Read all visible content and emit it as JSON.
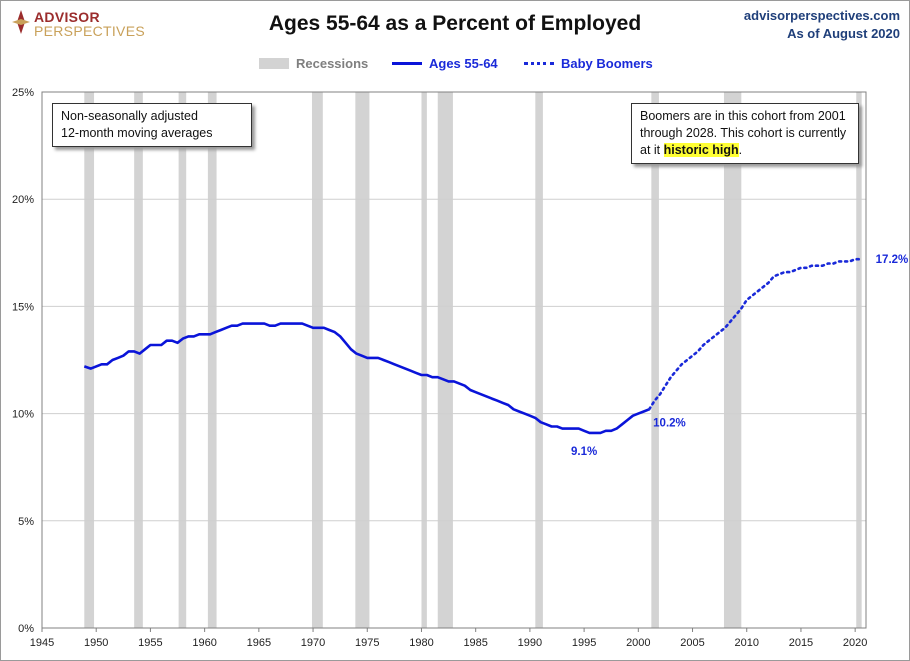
{
  "header": {
    "logo_line1": "ADVISOR",
    "logo_line2": "PERSPECTIVES",
    "site": "advisorperspectives.com",
    "as_of": "As of August 2020"
  },
  "notes": {
    "left_line1": "Non-seasonally adjusted",
    "left_line2": "12-month moving averages",
    "right_part1": "Boomers are in this cohort from 2001  through 2028.  This cohort is currently at it ",
    "right_highlight": "historic high",
    "right_end": "."
  },
  "colors": {
    "line": "#0a14d9",
    "boomers": "#1a2ad9",
    "recession": "#d3d3d3",
    "label": "#1a2ad9"
  },
  "chart_data": {
    "type": "line",
    "title": "Ages 55-64 as a Percent of Employed",
    "xlim": [
      1945,
      2021
    ],
    "ylim": [
      0,
      25
    ],
    "x_ticks": [
      1945,
      1950,
      1955,
      1960,
      1965,
      1970,
      1975,
      1980,
      1985,
      1990,
      1995,
      2000,
      2005,
      2010,
      2015,
      2020
    ],
    "y_ticks": [
      0,
      5,
      10,
      15,
      20,
      25
    ],
    "y_tick_labels": [
      "0%",
      "5%",
      "10%",
      "15%",
      "20%",
      "25%"
    ],
    "grid": "horizontal",
    "legend_position": "top-center",
    "recessions_label": "Recessions",
    "recessions": [
      [
        1948.9,
        1949.8
      ],
      [
        1953.5,
        1954.3
      ],
      [
        1957.6,
        1958.3
      ],
      [
        1960.3,
        1961.1
      ],
      [
        1969.9,
        1970.9
      ],
      [
        1973.9,
        1975.2
      ],
      [
        1980.0,
        1980.5
      ],
      [
        1981.5,
        1982.9
      ],
      [
        1990.5,
        1991.2
      ],
      [
        2001.2,
        2001.9
      ],
      [
        2007.9,
        2009.5
      ],
      [
        2020.1,
        2020.6
      ]
    ],
    "series": [
      {
        "name": "Ages 55-64",
        "style": "solid",
        "x": [
          1948.9,
          1949.5,
          1950,
          1950.5,
          1951,
          1951.5,
          1952,
          1952.5,
          1953,
          1953.5,
          1954,
          1954.5,
          1955,
          1955.5,
          1956,
          1956.5,
          1957,
          1957.5,
          1958,
          1958.5,
          1959,
          1959.5,
          1960,
          1960.5,
          1961,
          1961.5,
          1962,
          1962.5,
          1963,
          1963.5,
          1964,
          1964.5,
          1965,
          1965.5,
          1966,
          1966.5,
          1967,
          1967.5,
          1968,
          1968.5,
          1969,
          1969.5,
          1970,
          1970.5,
          1971,
          1971.5,
          1972,
          1972.5,
          1973,
          1973.5,
          1974,
          1974.5,
          1975,
          1975.5,
          1976,
          1976.5,
          1977,
          1977.5,
          1978,
          1978.5,
          1979,
          1979.5,
          1980,
          1980.5,
          1981,
          1981.5,
          1982,
          1982.5,
          1983,
          1983.5,
          1984,
          1984.5,
          1985,
          1985.5,
          1986,
          1986.5,
          1987,
          1987.5,
          1988,
          1988.5,
          1989,
          1989.5,
          1990,
          1990.5,
          1991,
          1991.5,
          1992,
          1992.5,
          1993,
          1993.5,
          1994,
          1994.5,
          1995,
          1995.5,
          1996,
          1996.5,
          1997,
          1997.5,
          1998,
          1998.5,
          1999,
          1999.5,
          2000,
          2000.5,
          2001
        ],
        "values": [
          12.2,
          12.1,
          12.2,
          12.3,
          12.3,
          12.5,
          12.6,
          12.7,
          12.9,
          12.9,
          12.8,
          13.0,
          13.2,
          13.2,
          13.2,
          13.4,
          13.4,
          13.3,
          13.5,
          13.6,
          13.6,
          13.7,
          13.7,
          13.7,
          13.8,
          13.9,
          14.0,
          14.1,
          14.1,
          14.2,
          14.2,
          14.2,
          14.2,
          14.2,
          14.1,
          14.1,
          14.2,
          14.2,
          14.2,
          14.2,
          14.2,
          14.1,
          14.0,
          14.0,
          14.0,
          13.9,
          13.8,
          13.6,
          13.3,
          13.0,
          12.8,
          12.7,
          12.6,
          12.6,
          12.6,
          12.5,
          12.4,
          12.3,
          12.2,
          12.1,
          12.0,
          11.9,
          11.8,
          11.8,
          11.7,
          11.7,
          11.6,
          11.5,
          11.5,
          11.4,
          11.3,
          11.1,
          11.0,
          10.9,
          10.8,
          10.7,
          10.6,
          10.5,
          10.4,
          10.2,
          10.1,
          10.0,
          9.9,
          9.8,
          9.6,
          9.5,
          9.4,
          9.4,
          9.3,
          9.3,
          9.3,
          9.3,
          9.2,
          9.1,
          9.1,
          9.1,
          9.2,
          9.2,
          9.3,
          9.5,
          9.7,
          9.9,
          10.0,
          10.1,
          10.2
        ]
      },
      {
        "name": "Baby Boomers",
        "style": "dotted",
        "x": [
          2001,
          2001.5,
          2002,
          2002.5,
          2003,
          2003.5,
          2004,
          2004.5,
          2005,
          2005.5,
          2006,
          2006.5,
          2007,
          2007.5,
          2008,
          2008.5,
          2009,
          2009.5,
          2010,
          2010.5,
          2011,
          2011.5,
          2012,
          2012.5,
          2013,
          2013.5,
          2014,
          2014.5,
          2015,
          2015.5,
          2016,
          2016.5,
          2017,
          2017.5,
          2018,
          2018.5,
          2019,
          2019.5,
          2020,
          2020.6
        ],
        "values": [
          10.2,
          10.6,
          10.9,
          11.3,
          11.7,
          12.0,
          12.3,
          12.5,
          12.7,
          12.9,
          13.2,
          13.4,
          13.6,
          13.8,
          14.0,
          14.3,
          14.6,
          14.9,
          15.3,
          15.5,
          15.7,
          15.9,
          16.1,
          16.4,
          16.5,
          16.6,
          16.6,
          16.7,
          16.8,
          16.8,
          16.9,
          16.9,
          16.9,
          17.0,
          17.0,
          17.1,
          17.1,
          17.1,
          17.2,
          17.2
        ]
      }
    ],
    "annotations": [
      {
        "text": "9.1%",
        "x": 1995,
        "y": 9.1,
        "pos": "below"
      },
      {
        "text": "10.2%",
        "x": 2001,
        "y": 10.2,
        "pos": "below-right"
      },
      {
        "text": "17.2%",
        "x": 2020.6,
        "y": 17.2,
        "pos": "right"
      }
    ]
  }
}
